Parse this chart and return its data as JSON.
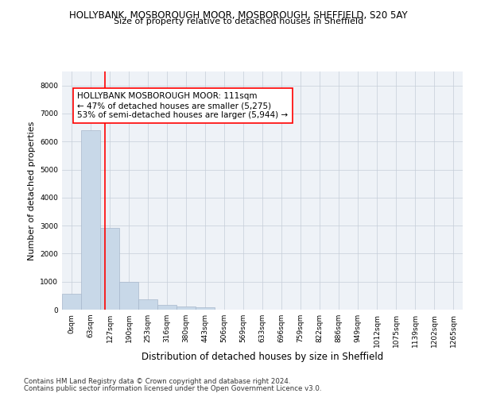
{
  "title_line1": "HOLLYBANK, MOSBOROUGH MOOR, MOSBOROUGH, SHEFFIELD, S20 5AY",
  "title_line2": "Size of property relative to detached houses in Sheffield",
  "xlabel": "Distribution of detached houses by size in Sheffield",
  "ylabel": "Number of detached properties",
  "bar_color": "#c8d8e8",
  "bar_edge_color": "#a8b8cc",
  "bin_labels": [
    "0sqm",
    "63sqm",
    "127sqm",
    "190sqm",
    "253sqm",
    "316sqm",
    "380sqm",
    "443sqm",
    "506sqm",
    "569sqm",
    "633sqm",
    "696sqm",
    "759sqm",
    "822sqm",
    "886sqm",
    "949sqm",
    "1012sqm",
    "1075sqm",
    "1139sqm",
    "1202sqm",
    "1265sqm"
  ],
  "bar_values": [
    570,
    6400,
    2920,
    980,
    360,
    175,
    110,
    90,
    0,
    0,
    0,
    0,
    0,
    0,
    0,
    0,
    0,
    0,
    0,
    0,
    0
  ],
  "ylim": [
    0,
    8500
  ],
  "yticks": [
    0,
    1000,
    2000,
    3000,
    4000,
    5000,
    6000,
    7000,
    8000
  ],
  "property_size": 111,
  "property_name": "HOLLYBANK MOSBOROUGH MOOR",
  "pct_smaller": 47,
  "n_smaller": 5275,
  "pct_larger_semi": 53,
  "n_larger_semi": 5944,
  "vline_x_bin": 1.75,
  "footer_line1": "Contains HM Land Registry data © Crown copyright and database right 2024.",
  "footer_line2": "Contains public sector information licensed under the Open Government Licence v3.0.",
  "bg_color": "#eef2f7",
  "grid_color": "#c5cdd8",
  "title_fontsize": 8.5,
  "subtitle_fontsize": 8.0,
  "ylabel_fontsize": 8.0,
  "xlabel_fontsize": 8.5,
  "tick_fontsize": 6.5,
  "annotation_fontsize": 7.5,
  "footer_fontsize": 6.2
}
